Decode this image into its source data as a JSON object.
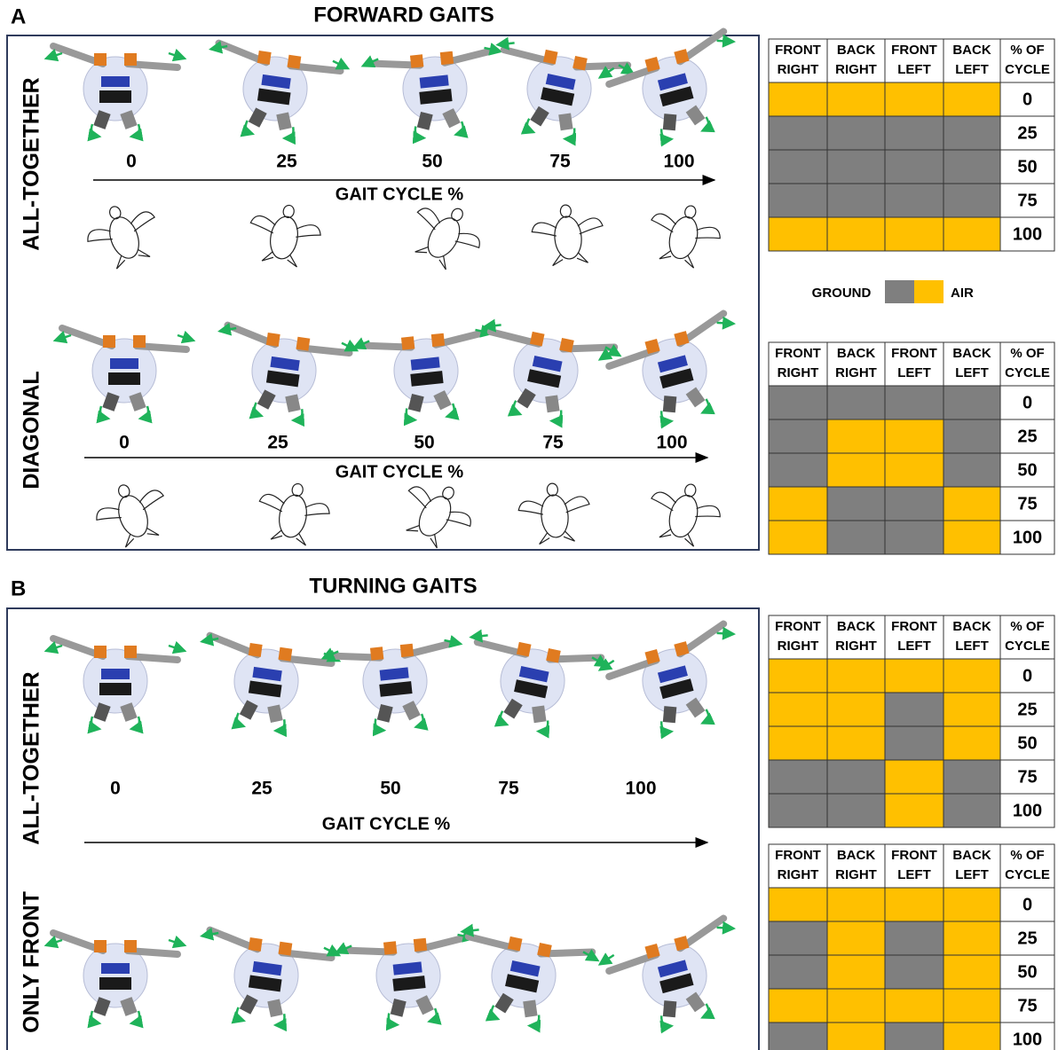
{
  "legend": [
    {
      "label": "GROUND",
      "color": "#7f7f7f"
    },
    {
      "label": "AIR",
      "color": "#ffc000"
    }
  ],
  "sections": [
    {
      "letter": "A",
      "title": "FORWARD GAITS",
      "panels": [
        {
          "label": "ALL-TOGETHER",
          "ticks": [
            0,
            25,
            50,
            75,
            100
          ],
          "axis_label": "GAIT CYCLE %"
        },
        {
          "label": "DIAGONAL",
          "ticks": [
            0,
            25,
            50,
            75,
            100
          ],
          "axis_label": "GAIT CYCLE %"
        }
      ],
      "tables": [
        {
          "columns": [
            [
              "FRONT",
              "RIGHT"
            ],
            [
              "BACK",
              "RIGHT"
            ],
            [
              "FRONT",
              "LEFT"
            ],
            [
              "BACK",
              "LEFT"
            ],
            [
              "% OF",
              "CYCLE"
            ]
          ],
          "rows": [
            {
              "cells": [
                "#ffc000",
                "#ffc000",
                "#ffc000",
                "#ffc000"
              ],
              "percent": 0
            },
            {
              "cells": [
                "#7f7f7f",
                "#7f7f7f",
                "#7f7f7f",
                "#7f7f7f"
              ],
              "percent": 25
            },
            {
              "cells": [
                "#7f7f7f",
                "#7f7f7f",
                "#7f7f7f",
                "#7f7f7f"
              ],
              "percent": 50
            },
            {
              "cells": [
                "#7f7f7f",
                "#7f7f7f",
                "#7f7f7f",
                "#7f7f7f"
              ],
              "percent": 75
            },
            {
              "cells": [
                "#ffc000",
                "#ffc000",
                "#ffc000",
                "#ffc000"
              ],
              "percent": 100
            }
          ]
        },
        {
          "columns": [
            [
              "FRONT",
              "RIGHT"
            ],
            [
              "BACK",
              "RIGHT"
            ],
            [
              "FRONT",
              "LEFT"
            ],
            [
              "BACK",
              "LEFT"
            ],
            [
              "% OF",
              "CYCLE"
            ]
          ],
          "rows": [
            {
              "cells": [
                "#7f7f7f",
                "#7f7f7f",
                "#7f7f7f",
                "#7f7f7f"
              ],
              "percent": 0
            },
            {
              "cells": [
                "#7f7f7f",
                "#ffc000",
                "#ffc000",
                "#7f7f7f"
              ],
              "percent": 25
            },
            {
              "cells": [
                "#7f7f7f",
                "#ffc000",
                "#ffc000",
                "#7f7f7f"
              ],
              "percent": 50
            },
            {
              "cells": [
                "#ffc000",
                "#7f7f7f",
                "#7f7f7f",
                "#ffc000"
              ],
              "percent": 75
            },
            {
              "cells": [
                "#ffc000",
                "#7f7f7f",
                "#7f7f7f",
                "#ffc000"
              ],
              "percent": 100
            }
          ]
        }
      ]
    },
    {
      "letter": "B",
      "title": "TURNING GAITS",
      "panels": [
        {
          "label": "ALL-TOGETHER",
          "ticks": [
            0,
            25,
            50,
            75,
            100
          ],
          "axis_label": "GAIT CYCLE %"
        },
        {
          "label": "ONLY FRONT"
        }
      ],
      "tables": [
        {
          "columns": [
            [
              "FRONT",
              "RIGHT"
            ],
            [
              "BACK",
              "RIGHT"
            ],
            [
              "FRONT",
              "LEFT"
            ],
            [
              "BACK",
              "LEFT"
            ],
            [
              "% OF",
              "CYCLE"
            ]
          ],
          "rows": [
            {
              "cells": [
                "#ffc000",
                "#ffc000",
                "#ffc000",
                "#ffc000"
              ],
              "percent": 0
            },
            {
              "cells": [
                "#ffc000",
                "#ffc000",
                "#7f7f7f",
                "#ffc000"
              ],
              "percent": 25
            },
            {
              "cells": [
                "#ffc000",
                "#ffc000",
                "#7f7f7f",
                "#ffc000"
              ],
              "percent": 50
            },
            {
              "cells": [
                "#7f7f7f",
                "#7f7f7f",
                "#ffc000",
                "#7f7f7f"
              ],
              "percent": 75
            },
            {
              "cells": [
                "#7f7f7f",
                "#7f7f7f",
                "#ffc000",
                "#7f7f7f"
              ],
              "percent": 100
            }
          ]
        },
        {
          "columns": [
            [
              "FRONT",
              "RIGHT"
            ],
            [
              "BACK",
              "RIGHT"
            ],
            [
              "FRONT",
              "LEFT"
            ],
            [
              "BACK",
              "LEFT"
            ],
            [
              "% OF",
              "CYCLE"
            ]
          ],
          "rows": [
            {
              "cells": [
                "#ffc000",
                "#ffc000",
                "#ffc000",
                "#ffc000"
              ],
              "percent": 0
            },
            {
              "cells": [
                "#7f7f7f",
                "#ffc000",
                "#7f7f7f",
                "#ffc000"
              ],
              "percent": 25
            },
            {
              "cells": [
                "#7f7f7f",
                "#ffc000",
                "#7f7f7f",
                "#ffc000"
              ],
              "percent": 50
            },
            {
              "cells": [
                "#ffc000",
                "#ffc000",
                "#ffc000",
                "#ffc000"
              ],
              "percent": 75
            },
            {
              "cells": [
                "#7f7f7f",
                "#ffc000",
                "#7f7f7f",
                "#ffc000"
              ],
              "percent": 100
            }
          ]
        }
      ]
    }
  ]
}
